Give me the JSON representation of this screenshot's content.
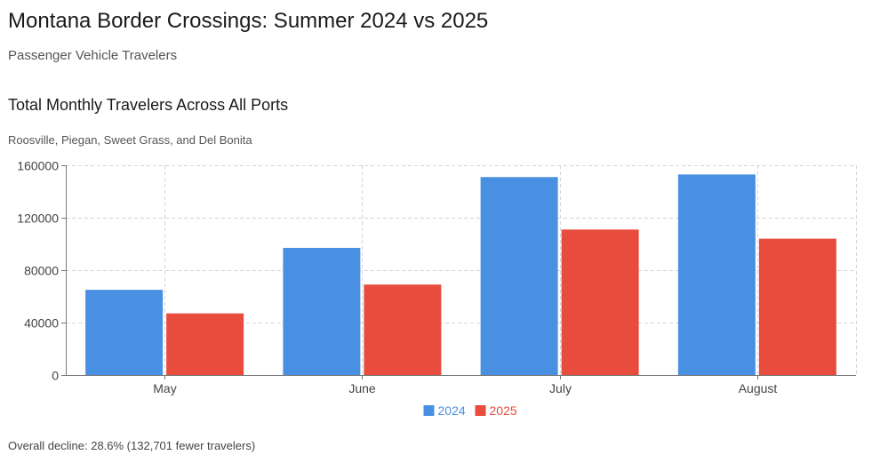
{
  "header": {
    "title": "Montana Border Crossings: Summer 2024 vs 2025",
    "subtitle": "Passenger Vehicle Travelers"
  },
  "chart_header": {
    "title": "Total Monthly Travelers Across All Ports",
    "subtitle": "Roosville, Piegan, Sweet Grass, and Del Bonita"
  },
  "footer": {
    "note": "Overall decline: 28.6% (132,701 fewer travelers)"
  },
  "chart_data": {
    "type": "bar",
    "categories": [
      "May",
      "June",
      "July",
      "August"
    ],
    "series": [
      {
        "name": "2024",
        "color": "#4a90e2",
        "values": [
          65000,
          97000,
          151000,
          153000
        ]
      },
      {
        "name": "2025",
        "color": "#e84c3d",
        "values": [
          47000,
          69000,
          111000,
          104000
        ]
      }
    ],
    "ylim": [
      0,
      160000
    ],
    "yticks": [
      0,
      40000,
      80000,
      120000,
      160000
    ],
    "grid": true,
    "legend_position": "bottom-center"
  }
}
